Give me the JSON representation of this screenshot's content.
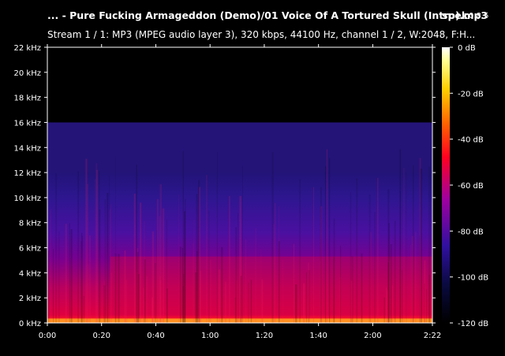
{
  "window": {
    "title": "... - Pure Fucking Armageddon (Demo)/01 Voice Of A Tortured Skull (Intro).mp3",
    "app_name": "spek",
    "app_version": "0.8.5",
    "stream_info": "Stream 1 / 1: MP3 (MPEG audio layer 3), 320 kbps, 44100 Hz, channel 1 / 2, W:2048, F:H..."
  },
  "chart_data": {
    "type": "heatmap",
    "y_axis": {
      "unit": "kHz",
      "range": [
        0,
        22
      ],
      "ticks": [
        "0 kHz",
        "2 kHz",
        "4 kHz",
        "6 kHz",
        "8 kHz",
        "10 kHz",
        "12 kHz",
        "14 kHz",
        "16 kHz",
        "18 kHz",
        "20 kHz",
        "22 kHz"
      ]
    },
    "x_axis": {
      "range_seconds": [
        0,
        142
      ],
      "ticks": [
        "0:00",
        "0:20",
        "0:40",
        "1:00",
        "1:20",
        "1:40",
        "2:00",
        "2:22"
      ],
      "tick_seconds": [
        0,
        20,
        40,
        60,
        80,
        100,
        120,
        142
      ]
    },
    "color_scale": {
      "unit": "dB",
      "range": [
        -120,
        0
      ],
      "ticks": [
        "0 dB",
        "-20 dB",
        "-40 dB",
        "-60 dB",
        "-80 dB",
        "-100 dB",
        "-120 dB"
      ],
      "tick_values": [
        0,
        -20,
        -40,
        -60,
        -80,
        -100,
        -120
      ],
      "colors": [
        "#000000",
        "#1a0a50",
        "#5010a0",
        "#b00070",
        "#f00010",
        "#ff8000",
        "#ffff80",
        "#ffffff"
      ]
    },
    "content_cutoff_khz": 16
  }
}
